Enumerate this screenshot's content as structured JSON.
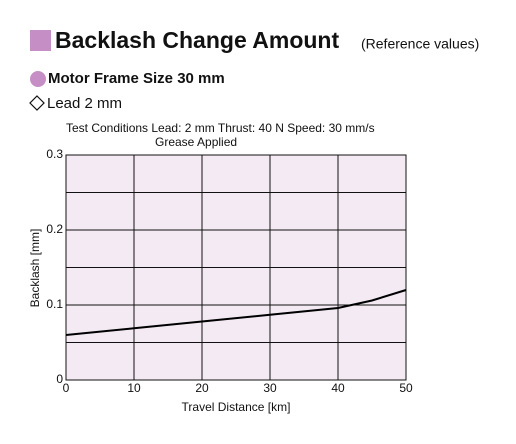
{
  "chart_data": {
    "type": "line",
    "title": "Backlash Change Amount",
    "subtitle": "(Reference values)",
    "motor": "Motor Frame Size 30 mm",
    "lead": "Lead 2 mm",
    "conditions": "Test Conditions  Lead: 2 mm  Thrust: 40 N  Speed: 30 mm/s",
    "conditions_2": "Grease Applied",
    "x_label": "Travel Distance [km]",
    "y_label": "Backlash [mm]",
    "x": [
      0,
      10,
      20,
      30,
      40,
      45,
      50
    ],
    "series": [
      {
        "name": "Lead 2 mm",
        "color": "#000000",
        "values": [
          0.06,
          0.069,
          0.078,
          0.087,
          0.096,
          0.106,
          0.12
        ]
      }
    ],
    "xlim": [
      0,
      50
    ],
    "xticks": [
      0,
      10,
      20,
      30,
      40,
      50
    ],
    "ylim": [
      0,
      0.3
    ],
    "yticks": [
      0,
      0.1,
      0.2,
      0.3
    ],
    "y_minor_grid": [
      0.05,
      0.15,
      0.25
    ],
    "grid": true,
    "plot_background": "#f4eaf4",
    "accent_color": "#c58ec5"
  }
}
